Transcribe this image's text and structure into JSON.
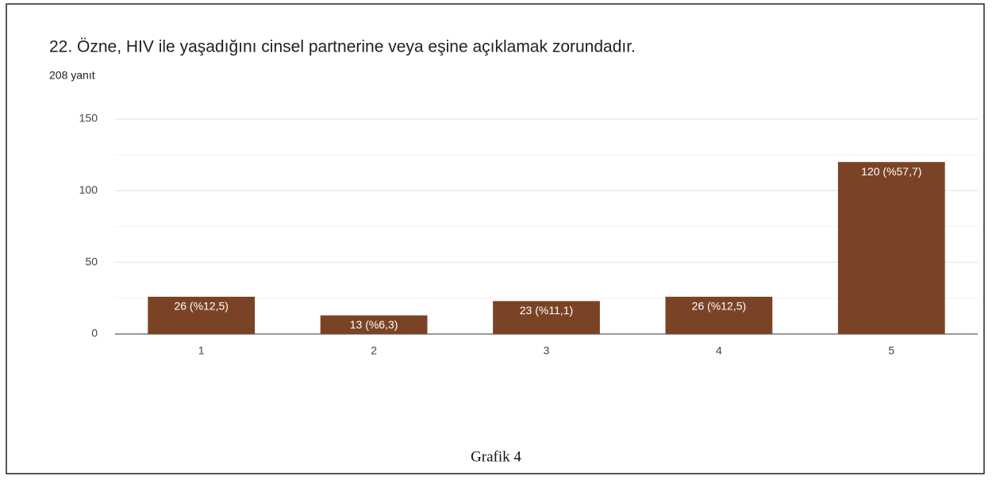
{
  "chart_data": {
    "type": "bar",
    "title": "22. Özne, HIV ile yaşadığını cinsel partnerine veya eşine açıklamak zorundadır.",
    "subtitle": "208 yanıt",
    "caption": "Grafik 4",
    "categories": [
      "1",
      "2",
      "3",
      "4",
      "5"
    ],
    "values": [
      26,
      13,
      23,
      26,
      120
    ],
    "value_labels": [
      "26 (%12,5)",
      "13 (%6,3)",
      "23 (%11,1)",
      "26 (%12,5)",
      "120 (%57,7)"
    ],
    "color": "#7b4326",
    "ylim": [
      0,
      150
    ],
    "yticks": [
      0,
      50,
      100,
      150
    ],
    "minor_yticks": [
      25,
      75,
      125
    ],
    "grid": true
  }
}
